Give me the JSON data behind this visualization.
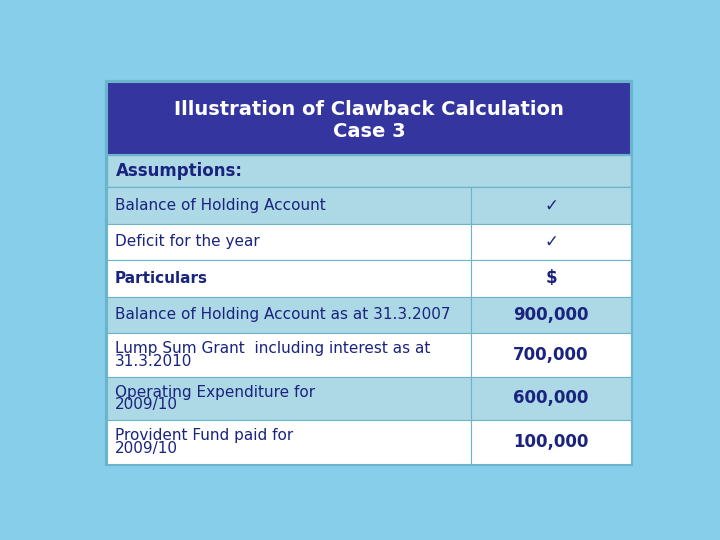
{
  "title_line1": "Illustration of Clawback Calculation",
  "title_line2": "Case 3",
  "title_bg": "#3535a0",
  "title_fg": "#ffffff",
  "assumptions_bg": "#add8e6",
  "assumptions_text": "Assumptions:",
  "row_light_bg": "#add8e6",
  "row_white_bg": "#ffffff",
  "outer_bg": "#87ceeb",
  "table_bg": "#add8e6",
  "rows": [
    {
      "label": "Balance of Holding Account",
      "value": "✓",
      "bold_value": false,
      "bold_label": false,
      "bg": "#add8e6",
      "multiline": false
    },
    {
      "label": "Deficit for the year",
      "value": "✓",
      "bold_value": false,
      "bold_label": false,
      "bg": "#ffffff",
      "multiline": false
    },
    {
      "label": "Particulars",
      "value": "$",
      "bold_label": true,
      "bold_value": true,
      "bg": "#ffffff",
      "multiline": false
    },
    {
      "label": "Balance of Holding Account as at 31.3.2007",
      "value": "900,000",
      "bold_value": true,
      "bold_label": false,
      "bg": "#add8e6",
      "multiline": false
    },
    {
      "label": "Lump Sum Grant  including interest as at\n31.3.2010",
      "value": "700,000",
      "bold_value": true,
      "bold_label": false,
      "bg": "#ffffff",
      "multiline": true
    },
    {
      "label": "Operating Expenditure for\n2009/10",
      "value": "600,000",
      "bold_value": true,
      "bold_label": false,
      "bg": "#add8e6",
      "multiline": true
    },
    {
      "label": "Provident Fund paid for\n2009/10",
      "value": "100,000",
      "bold_value": true,
      "bold_label": false,
      "bg": "#ffffff",
      "multiline": true
    }
  ],
  "col_split": 0.695,
  "border_color": "#6ab4cc",
  "text_color": "#1a237e",
  "value_color": "#000080"
}
